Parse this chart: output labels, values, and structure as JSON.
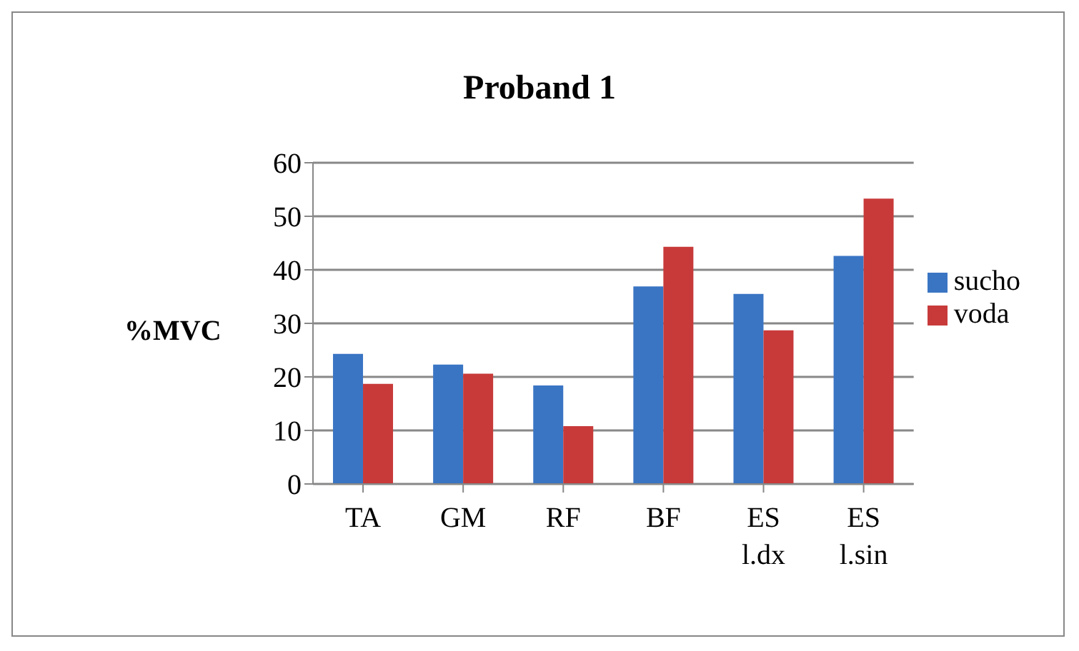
{
  "chart_data": {
    "type": "bar",
    "title": "Proband 1",
    "ylabel": "%MVC",
    "categories": [
      "TA",
      "GM",
      "RF",
      "BF",
      "ES l.dx",
      "ES l.sin"
    ],
    "series": [
      {
        "name": "sucho",
        "color": "#3a75c4",
        "values": [
          24.3,
          22.3,
          18.4,
          36.9,
          35.5,
          42.6
        ]
      },
      {
        "name": "voda",
        "color": "#c83a3a",
        "values": [
          18.7,
          20.6,
          10.8,
          44.3,
          28.7,
          53.3
        ]
      }
    ],
    "ylim": [
      0,
      60
    ],
    "yticks": [
      0,
      10,
      20,
      30,
      40,
      50,
      60
    ],
    "grid": "y",
    "legend": "right"
  }
}
